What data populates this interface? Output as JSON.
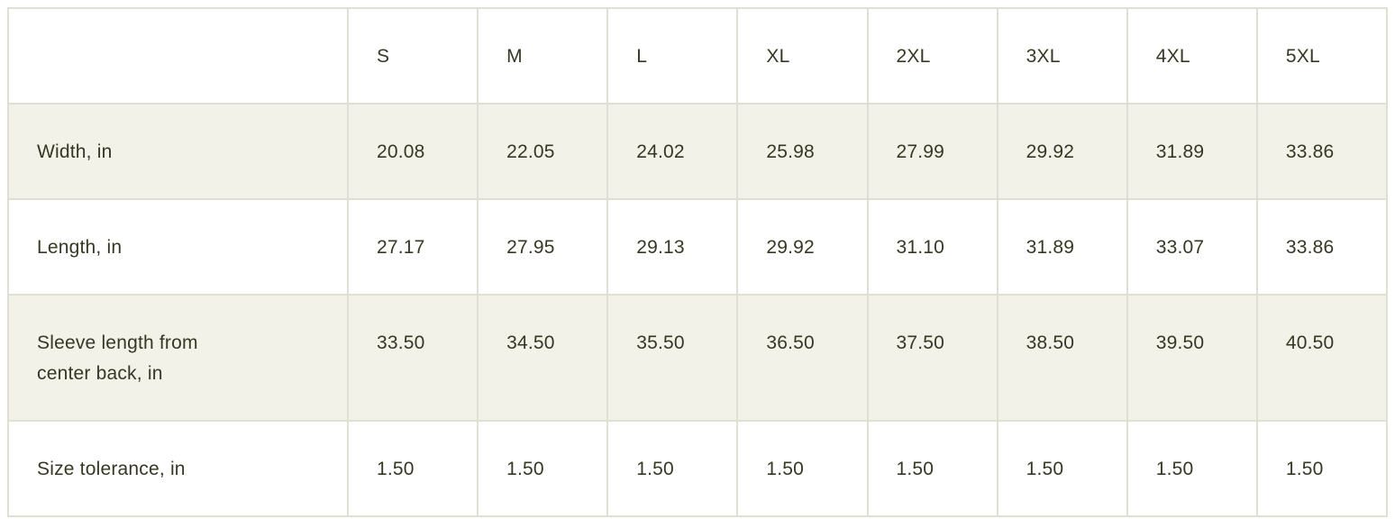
{
  "table": {
    "corner_label": "",
    "size_columns": [
      "S",
      "M",
      "L",
      "XL",
      "2XL",
      "3XL",
      "4XL",
      "5XL"
    ],
    "rows": [
      {
        "label": "Width, in",
        "values": [
          "20.08",
          "22.05",
          "24.02",
          "25.98",
          "27.99",
          "29.92",
          "31.89",
          "33.86"
        ]
      },
      {
        "label": "Length, in",
        "values": [
          "27.17",
          "27.95",
          "29.13",
          "29.92",
          "31.10",
          "31.89",
          "33.07",
          "33.86"
        ]
      },
      {
        "label": "Sleeve length from center back, in",
        "values": [
          "33.50",
          "34.50",
          "35.50",
          "36.50",
          "37.50",
          "38.50",
          "39.50",
          "40.50"
        ]
      },
      {
        "label": "Size tolerance, in",
        "values": [
          "1.50",
          "1.50",
          "1.50",
          "1.50",
          "1.50",
          "1.50",
          "1.50",
          "1.50"
        ]
      }
    ]
  },
  "colors": {
    "text": "#373723",
    "border": "#dfe0d3",
    "stripe_row_background": "#f2f2e9",
    "background": "#ffffff"
  }
}
